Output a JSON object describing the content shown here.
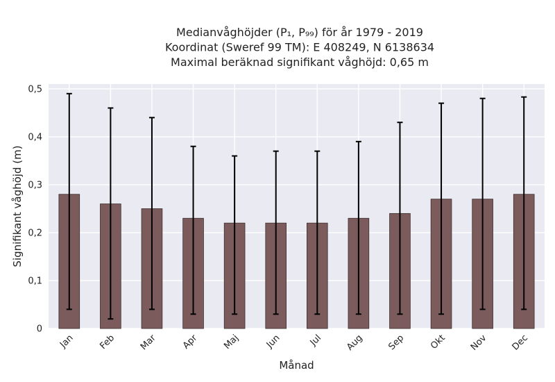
{
  "chart_data": {
    "type": "bar",
    "title_lines": [
      "Medianvåghöjder (P₁, P₉₉) för år 1979 - 2019",
      "Koordinat (Sweref 99 TM): E 408249, N 6138634",
      "Maximal beräknad signifikant våghöjd: 0,65 m"
    ],
    "xlabel": "Månad",
    "ylabel": "Signifikant våghöjd (m)",
    "categories": [
      "Jan",
      "Feb",
      "Mar",
      "Apr",
      "Maj",
      "Jun",
      "Jul",
      "Aug",
      "Sep",
      "Okt",
      "Nov",
      "Dec"
    ],
    "values": [
      0.28,
      0.26,
      0.25,
      0.23,
      0.22,
      0.22,
      0.22,
      0.23,
      0.24,
      0.27,
      0.27,
      0.28
    ],
    "error_low": [
      0.04,
      0.02,
      0.04,
      0.03,
      0.03,
      0.03,
      0.03,
      0.03,
      0.03,
      0.03,
      0.04,
      0.04
    ],
    "error_high": [
      0.49,
      0.46,
      0.44,
      0.38,
      0.36,
      0.37,
      0.37,
      0.39,
      0.43,
      0.47,
      0.48,
      0.483
    ],
    "ylim": [
      0,
      0.51
    ],
    "yticks": [
      0,
      0.1,
      0.2,
      0.3,
      0.4,
      0.5
    ],
    "ytick_labels": [
      "0",
      "0,1",
      "0,2",
      "0,3",
      "0,4",
      "0,5"
    ],
    "grid": true,
    "colors": {
      "bar": "#7b5b5b",
      "plot_background": "#eaeaf2",
      "grid": "#ffffff",
      "error_bar": "#000000"
    }
  }
}
